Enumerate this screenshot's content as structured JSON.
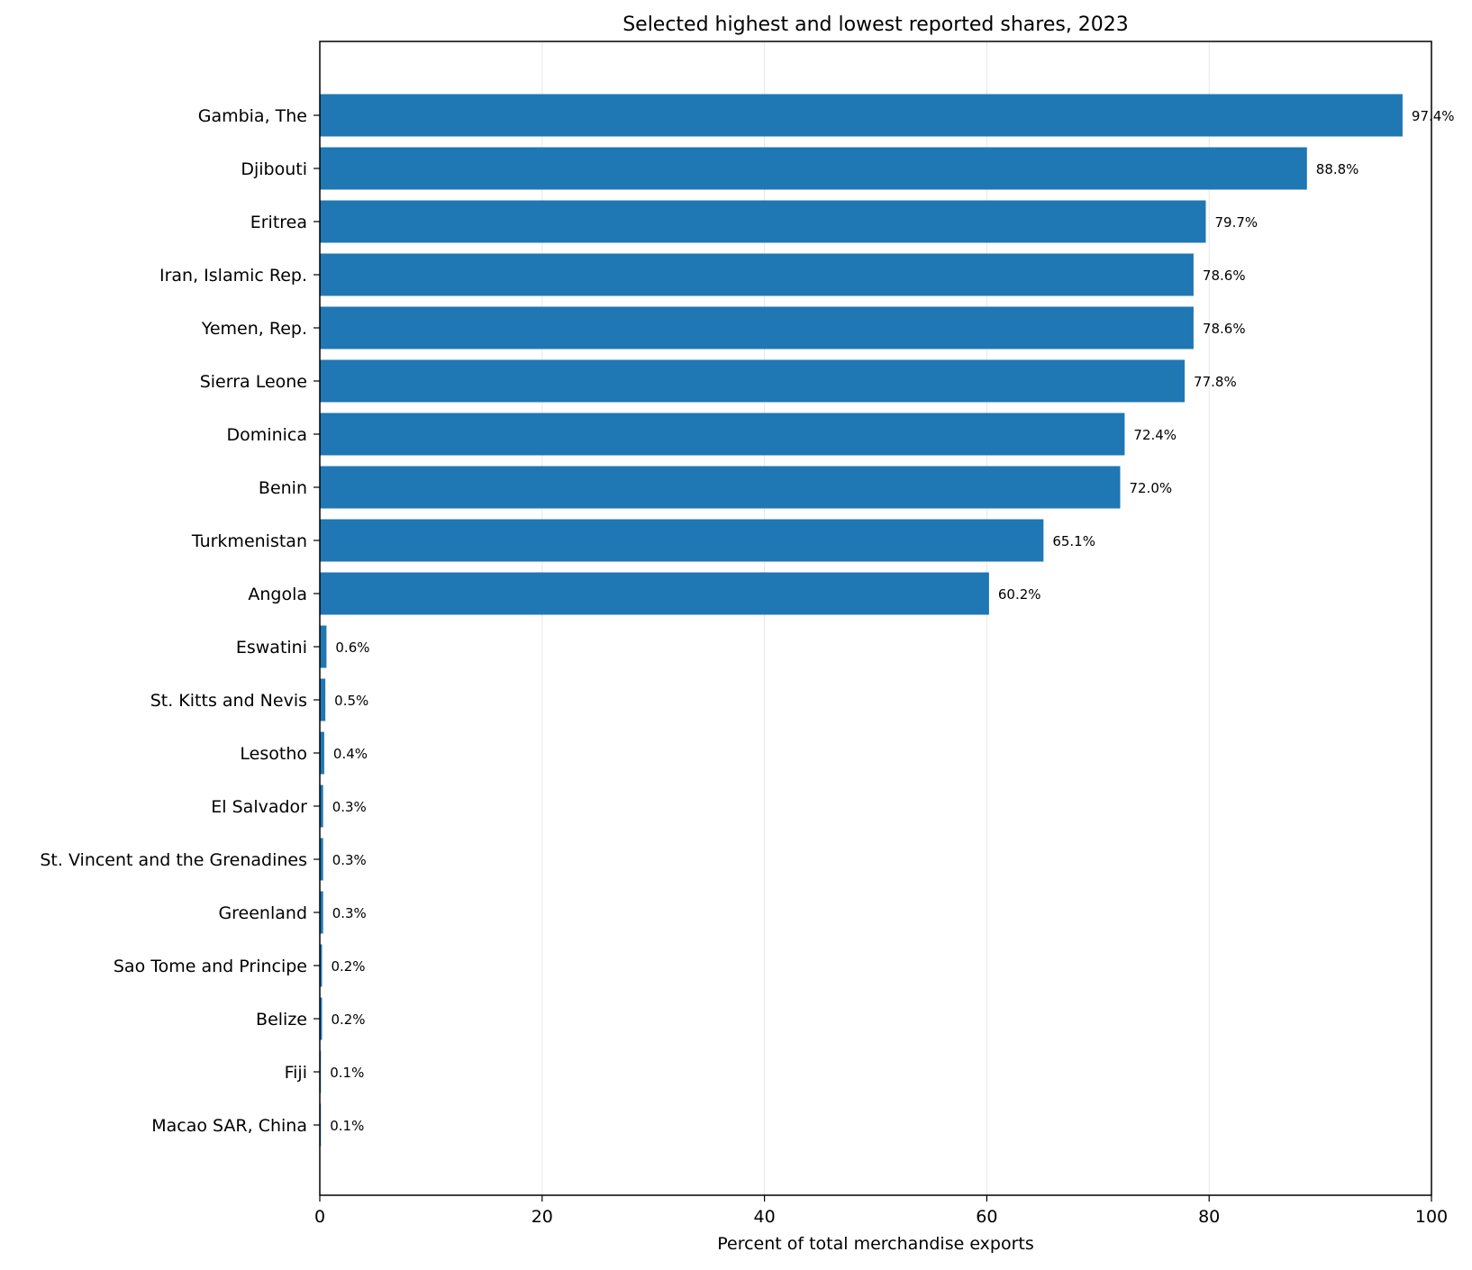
{
  "chart_data": {
    "type": "bar",
    "orientation": "horizontal",
    "title": "Selected highest and lowest reported shares, 2023",
    "xlabel": "Percent of total merchandise exports",
    "ylabel": "",
    "xlim": [
      0,
      100
    ],
    "xticks": [
      "0",
      "20",
      "40",
      "60",
      "80",
      "100"
    ],
    "grid": "vertical",
    "bar_color": "#1f77b4",
    "categories": [
      "Gambia, The",
      "Djibouti",
      "Eritrea",
      "Iran, Islamic Rep.",
      "Yemen, Rep.",
      "Sierra Leone",
      "Dominica",
      "Benin",
      "Turkmenistan",
      "Angola",
      "Eswatini",
      "St. Kitts and Nevis",
      "Lesotho",
      "El Salvador",
      "St. Vincent and the Grenadines",
      "Greenland",
      "Sao Tome and Principe",
      "Belize",
      "Fiji",
      "Macao SAR, China"
    ],
    "values": [
      97.4,
      88.8,
      79.7,
      78.6,
      78.6,
      77.8,
      72.4,
      72.0,
      65.1,
      60.2,
      0.6,
      0.5,
      0.4,
      0.3,
      0.3,
      0.3,
      0.2,
      0.2,
      0.1,
      0.1
    ],
    "data_labels": [
      "97.4%",
      "88.8%",
      "79.7%",
      "78.6%",
      "78.6%",
      "77.8%",
      "72.4%",
      "72.0%",
      "65.1%",
      "60.2%",
      "0.6%",
      "0.5%",
      "0.4%",
      "0.3%",
      "0.3%",
      "0.3%",
      "0.2%",
      "0.2%",
      "0.1%",
      "0.1%"
    ]
  }
}
